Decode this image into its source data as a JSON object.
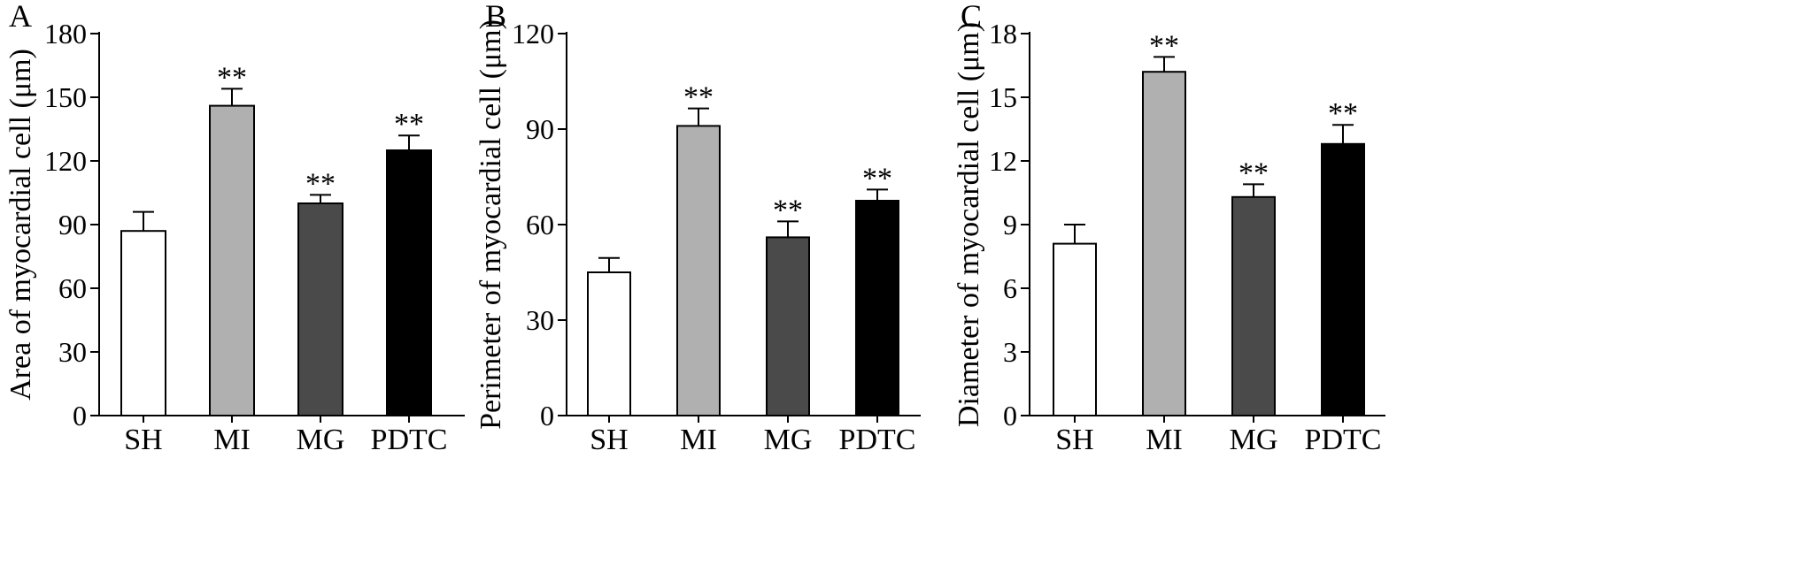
{
  "chart_data": [
    {
      "type": "bar",
      "panel_label": "A",
      "ylabel": "Area of myocardial cell (μm)",
      "ylim": [
        0,
        180
      ],
      "yticks": [
        0,
        30,
        60,
        90,
        120,
        150,
        180
      ],
      "categories": [
        "SH",
        "MI",
        "MG",
        "PDTC"
      ],
      "values": [
        87,
        146,
        100,
        125
      ],
      "errors": [
        9,
        8,
        4,
        7
      ],
      "significance": [
        "",
        "**",
        "**",
        "**"
      ]
    },
    {
      "type": "bar",
      "panel_label": "B",
      "ylabel": "Perimeter of myocardial cell (μm)",
      "ylim": [
        0,
        120
      ],
      "yticks": [
        0,
        30,
        60,
        90,
        120
      ],
      "categories": [
        "SH",
        "MI",
        "MG",
        "PDTC"
      ],
      "values": [
        45,
        91,
        56,
        67.5
      ],
      "errors": [
        4.5,
        5.5,
        5,
        3.5
      ],
      "significance": [
        "",
        "**",
        "**",
        "**"
      ]
    },
    {
      "type": "bar",
      "panel_label": "C",
      "ylabel": "Diameter of myocardial cell (μm)",
      "ylim": [
        0,
        18
      ],
      "yticks": [
        0,
        3,
        6,
        9,
        12,
        15,
        18
      ],
      "categories": [
        "SH",
        "MI",
        "MG",
        "PDTC"
      ],
      "values": [
        8.1,
        16.2,
        10.3,
        12.8
      ],
      "errors": [
        0.9,
        0.7,
        0.6,
        0.9
      ],
      "significance": [
        "",
        "**",
        "**",
        "**"
      ]
    }
  ],
  "colors": {
    "bar_fills": [
      "#ffffff",
      "#b0b0b0",
      "#4a4a4a",
      "#000000"
    ],
    "stroke": "#000000"
  }
}
